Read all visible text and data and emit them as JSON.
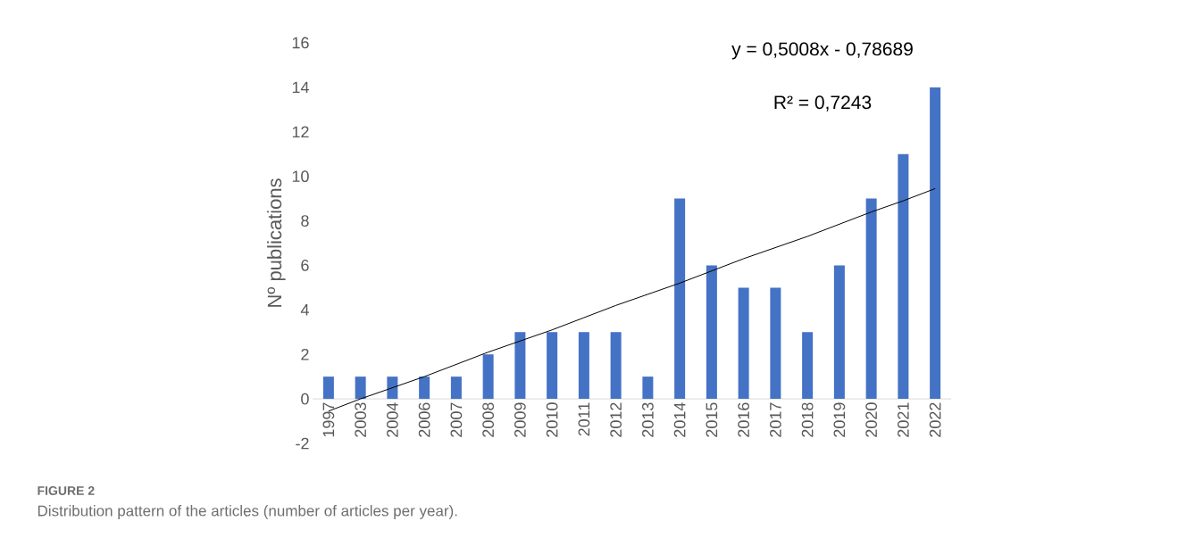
{
  "chart_data": {
    "type": "bar",
    "categories": [
      "1997",
      "2003",
      "2004",
      "2006",
      "2007",
      "2008",
      "2009",
      "2010",
      "2011",
      "2012",
      "2013",
      "2014",
      "2015",
      "2016",
      "2017",
      "2018",
      "2019",
      "2020",
      "2021",
      "2022"
    ],
    "ylabel": "Nº publications",
    "ylim": [
      -2,
      16
    ],
    "yticks": [
      -2,
      0,
      2,
      4,
      6,
      8,
      10,
      12,
      14,
      16
    ],
    "series": [
      {
        "color": "#4472c4",
        "values": [
          1,
          1,
          1,
          1,
          1,
          2,
          3,
          3,
          3,
          3,
          1,
          9,
          6,
          5,
          5,
          3,
          6,
          9,
          11,
          14
        ]
      },
      {
        "type": "line",
        "color": "#000000",
        "values": [
          -0.55,
          0.0,
          0.5,
          1.0,
          1.55,
          2.1,
          2.6,
          3.1,
          3.65,
          4.2,
          4.7,
          5.2,
          5.75,
          6.3,
          6.8,
          7.3,
          7.85,
          8.4,
          8.9,
          9.45
        ]
      }
    ],
    "annotations": [
      "y = 0,5008x - 0,78689",
      "R² = 0,7243",
      "FIGURE 2",
      "Distribution pattern of the articles (number of articles per year)."
    ],
    "grid": false
  }
}
